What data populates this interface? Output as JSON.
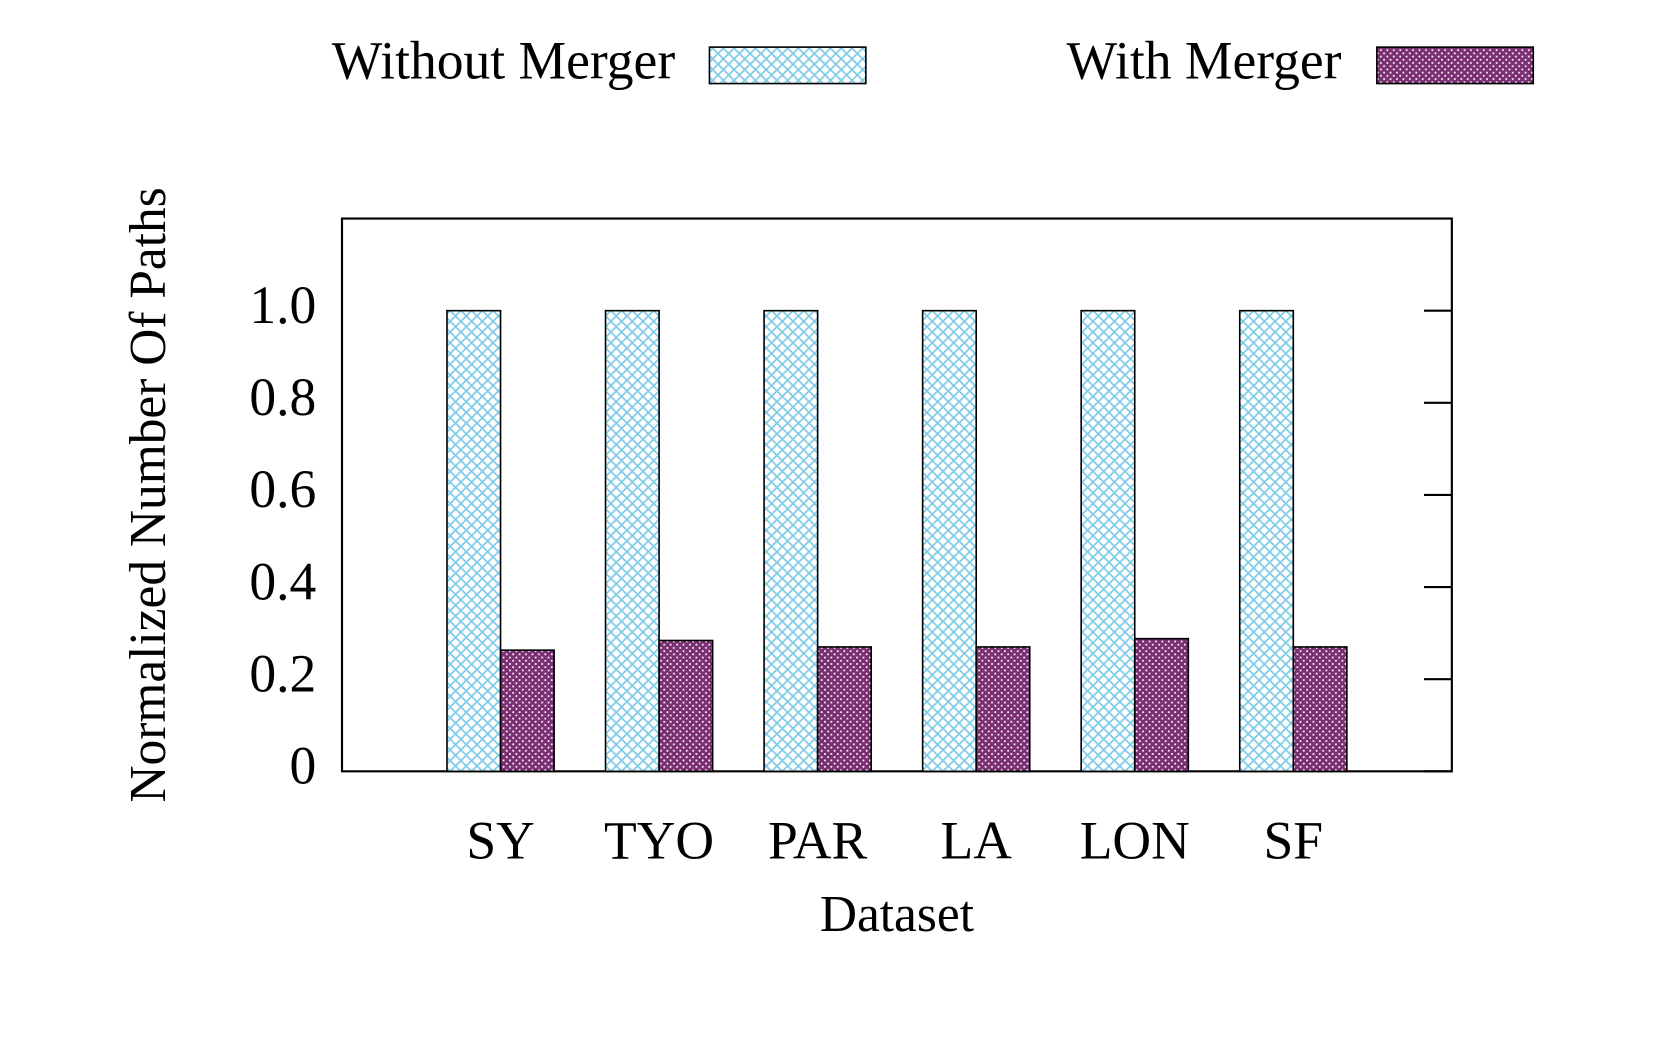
{
  "chart_data": {
    "type": "bar",
    "x_label": "Dataset",
    "y_label": "Normalized  Number  Of  Paths",
    "categories": [
      "SY",
      "TYO",
      "PAR",
      "LA",
      "LON",
      "SF"
    ],
    "series": [
      {
        "name": "Without Merger",
        "color": "#7ecbe8",
        "values": [
          1,
          1,
          1,
          1,
          1,
          1
        ]
      },
      {
        "name": "With Merger",
        "color": "#7a2f72",
        "values": [
          0.263,
          0.284,
          0.27,
          0.27,
          0.288,
          0.27
        ]
      }
    ],
    "ylim": [
      0,
      1.2
    ],
    "yticks": [
      0,
      0.2,
      0.4,
      0.6,
      0.8,
      {
        "value": 1,
        "label": "1.0"
      }
    ],
    "grid": false
  }
}
